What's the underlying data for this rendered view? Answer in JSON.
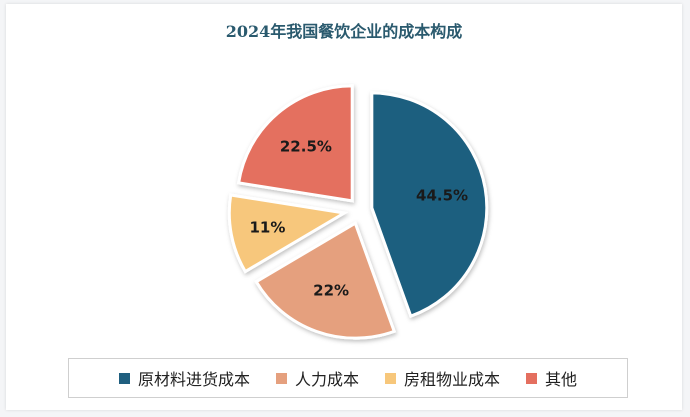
{
  "chart_data": {
    "type": "pie",
    "title": "2024年我国餐饮企业的成本构成",
    "slices": [
      {
        "name": "原材料进货成本",
        "value": 44.5,
        "label": "44.5%",
        "color": "#1f5f7f"
      },
      {
        "name": "人力成本",
        "value": 22,
        "label": "22%",
        "color": "#e5a07e"
      },
      {
        "name": "房租物业成本",
        "value": 11,
        "label": "11%",
        "color": "#f7c77b"
      },
      {
        "name": "其他",
        "value": 22.5,
        "label": "22.5%",
        "color": "#e46f5f"
      }
    ],
    "legend_position": "bottom",
    "exploded": true
  }
}
